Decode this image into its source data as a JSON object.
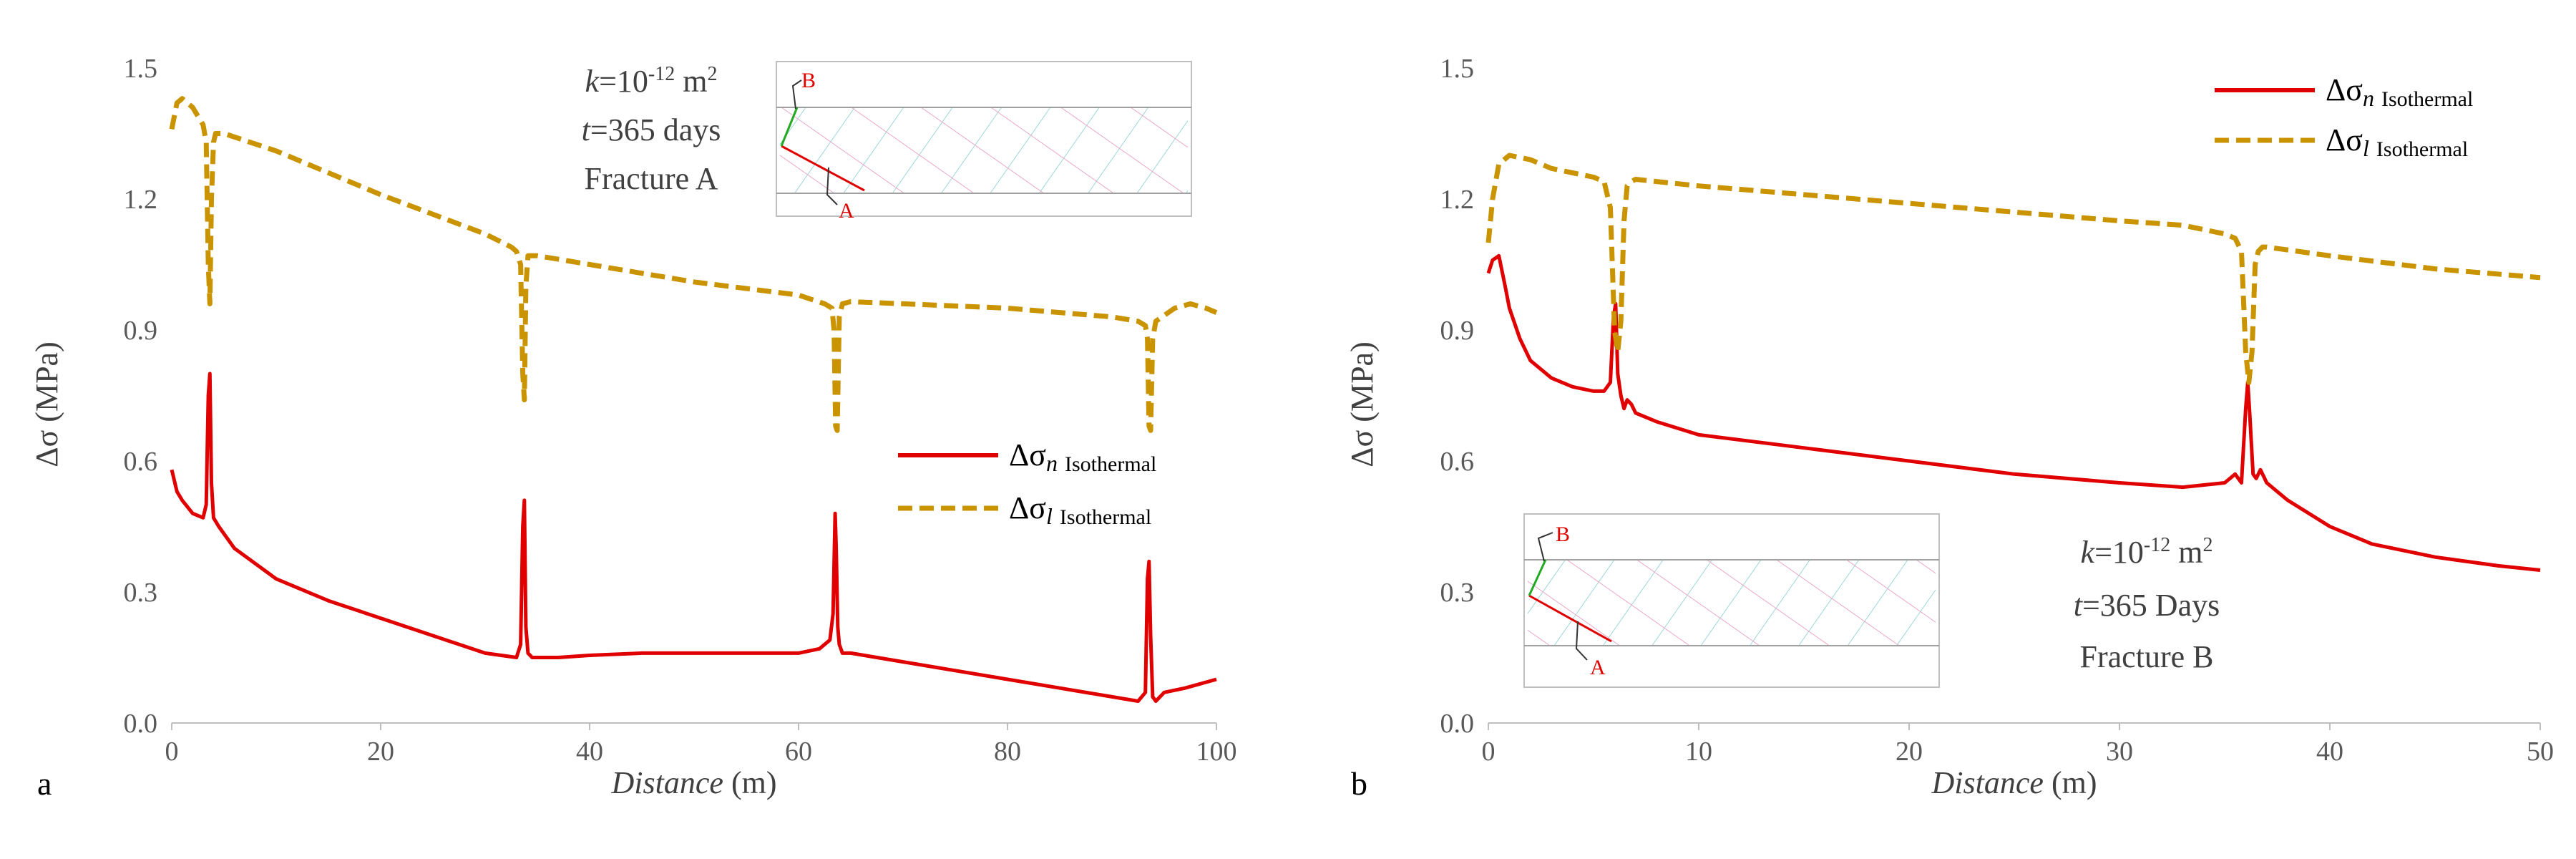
{
  "colors": {
    "normal": "#e00000",
    "parallel": "#c99400",
    "axis": "#bfbfbf",
    "hatchA": "#9fd6d8",
    "hatchB": "#e8a7c8",
    "fractureA": "#e00000",
    "fractureB": "#22aa22"
  },
  "chart_data": [
    {
      "type": "line",
      "panel_label": "a",
      "xlabel": "Distance",
      "xlabel_unit": " (m)",
      "ylabel": "Δσ",
      "ylabel_unit": " (MPa)",
      "xlim": [
        0,
        100
      ],
      "ylim": [
        0,
        1.5
      ],
      "xticks": [
        "0",
        "20",
        "40",
        "60",
        "80",
        "100"
      ],
      "yticks": [
        "0.0",
        "0.3",
        "0.6",
        "0.9",
        "1.2",
        "1.5"
      ],
      "annotation": {
        "k": "k",
        "k_rest": "=10",
        "k_exp": "-12",
        "k_unit": " m",
        "k_unit_exp": "2",
        "t": "t",
        "t_rest": "=365 days",
        "fracture": "Fracture A"
      },
      "inset_labels": {
        "b": "B",
        "a": "A"
      },
      "legend": [
        {
          "symbol": "Δσ",
          "sub": "n",
          "suffix": "Isothermal"
        },
        {
          "symbol": "Δσ",
          "sub": "l",
          "suffix": "Isothermal"
        }
      ],
      "series": [
        {
          "name": "Δσn Isothermal",
          "style": "solid",
          "x": [
            0,
            0.5,
            1,
            2,
            3,
            3.3,
            3.5,
            3.65,
            3.8,
            4,
            4.5,
            6,
            10,
            15,
            20,
            25,
            30,
            33,
            33.4,
            33.6,
            33.75,
            33.9,
            34.1,
            34.5,
            35,
            37,
            40,
            45,
            50,
            55,
            60,
            62,
            63,
            63.3,
            63.5,
            63.6,
            63.75,
            63.9,
            64.2,
            65,
            70,
            75,
            80,
            85,
            90,
            92.5,
            93.2,
            93.4,
            93.55,
            93.7,
            93.9,
            94.2,
            95,
            97,
            100
          ],
          "y": [
            0.58,
            0.53,
            0.51,
            0.48,
            0.47,
            0.5,
            0.75,
            0.8,
            0.55,
            0.47,
            0.45,
            0.4,
            0.33,
            0.28,
            0.24,
            0.2,
            0.16,
            0.15,
            0.18,
            0.45,
            0.51,
            0.22,
            0.16,
            0.15,
            0.15,
            0.15,
            0.155,
            0.16,
            0.16,
            0.16,
            0.16,
            0.17,
            0.19,
            0.25,
            0.48,
            0.4,
            0.22,
            0.18,
            0.16,
            0.16,
            0.14,
            0.12,
            0.1,
            0.08,
            0.06,
            0.05,
            0.07,
            0.33,
            0.37,
            0.2,
            0.06,
            0.05,
            0.07,
            0.08,
            0.1
          ]
        },
        {
          "name": "Δσl Isothermal",
          "style": "dashed",
          "x": [
            0,
            0.5,
            1,
            1.5,
            2,
            2.5,
            3,
            3.3,
            3.5,
            3.65,
            3.8,
            4,
            4.2,
            5,
            10,
            20,
            30,
            32.5,
            33,
            33.4,
            33.6,
            33.75,
            33.9,
            34.1,
            35,
            40,
            50,
            60,
            62.5,
            63.2,
            63.4,
            63.55,
            63.7,
            63.9,
            64.2,
            65,
            70,
            80,
            90,
            92.5,
            93.2,
            93.4,
            93.55,
            93.7,
            93.9,
            94.2,
            96,
            97.5,
            99,
            100
          ],
          "y": [
            1.36,
            1.42,
            1.43,
            1.42,
            1.41,
            1.39,
            1.37,
            1.33,
            1.05,
            0.96,
            1.2,
            1.33,
            1.35,
            1.35,
            1.31,
            1.21,
            1.12,
            1.09,
            1.08,
            1.05,
            0.8,
            0.74,
            1.0,
            1.07,
            1.07,
            1.05,
            1.01,
            0.98,
            0.96,
            0.95,
            0.9,
            0.68,
            0.67,
            0.93,
            0.96,
            0.965,
            0.96,
            0.95,
            0.93,
            0.92,
            0.91,
            0.88,
            0.68,
            0.67,
            0.88,
            0.92,
            0.95,
            0.96,
            0.95,
            0.94
          ]
        }
      ]
    },
    {
      "type": "line",
      "panel_label": "b",
      "xlabel": "Distance",
      "xlabel_unit": " (m)",
      "ylabel": "Δσ",
      "ylabel_unit": " (MPa)",
      "xlim": [
        0,
        50
      ],
      "ylim": [
        0,
        1.5
      ],
      "xticks": [
        "0",
        "10",
        "20",
        "30",
        "40",
        "50"
      ],
      "yticks": [
        "0.0",
        "0.3",
        "0.6",
        "0.9",
        "1.2",
        "1.5"
      ],
      "annotation": {
        "k": "k",
        "k_rest": "=10",
        "k_exp": "-12",
        "k_unit": " m",
        "k_unit_exp": "2",
        "t": "t",
        "t_rest": "=365 Days",
        "fracture": "Fracture B"
      },
      "inset_labels": {
        "b": "B",
        "a": "A"
      },
      "legend": [
        {
          "symbol": "Δσ",
          "sub": "n",
          "suffix": "Isothermal"
        },
        {
          "symbol": "Δσ",
          "sub": "l",
          "suffix": "Isothermal"
        }
      ],
      "series": [
        {
          "name": "Δσn Isothermal",
          "style": "solid",
          "x": [
            0,
            0.2,
            0.5,
            0.8,
            1,
            1.5,
            2,
            3,
            4,
            5,
            5.5,
            5.8,
            5.95,
            6.05,
            6.15,
            6.3,
            6.45,
            6.6,
            6.8,
            7,
            8,
            10,
            15,
            20,
            25,
            30,
            33,
            35,
            35.5,
            35.8,
            36,
            36.1,
            36.2,
            36.35,
            36.5,
            36.7,
            37,
            38,
            40,
            42,
            45,
            48,
            50
          ],
          "y": [
            1.03,
            1.06,
            1.07,
            1.0,
            0.95,
            0.88,
            0.83,
            0.79,
            0.77,
            0.76,
            0.76,
            0.78,
            0.93,
            0.96,
            0.8,
            0.75,
            0.72,
            0.74,
            0.73,
            0.71,
            0.69,
            0.66,
            0.63,
            0.6,
            0.57,
            0.55,
            0.54,
            0.55,
            0.57,
            0.55,
            0.72,
            0.78,
            0.7,
            0.57,
            0.56,
            0.58,
            0.55,
            0.51,
            0.45,
            0.41,
            0.38,
            0.36,
            0.35
          ]
        },
        {
          "name": "Δσl Isothermal",
          "style": "dashed",
          "x": [
            0,
            0.2,
            0.5,
            1,
            2,
            3,
            4,
            5,
            5.5,
            5.8,
            6,
            6.15,
            6.3,
            6.45,
            6.6,
            6.8,
            7,
            8,
            10,
            15,
            20,
            25,
            30,
            33,
            35,
            35.5,
            35.8,
            36,
            36.15,
            36.3,
            36.45,
            36.6,
            36.8,
            37,
            40,
            45,
            50
          ],
          "y": [
            1.1,
            1.2,
            1.28,
            1.3,
            1.29,
            1.27,
            1.26,
            1.25,
            1.24,
            1.18,
            0.9,
            0.85,
            0.92,
            1.15,
            1.23,
            1.24,
            1.245,
            1.24,
            1.23,
            1.21,
            1.19,
            1.17,
            1.15,
            1.14,
            1.12,
            1.11,
            1.08,
            0.85,
            0.78,
            0.85,
            1.05,
            1.08,
            1.09,
            1.09,
            1.07,
            1.04,
            1.02
          ]
        }
      ]
    }
  ]
}
